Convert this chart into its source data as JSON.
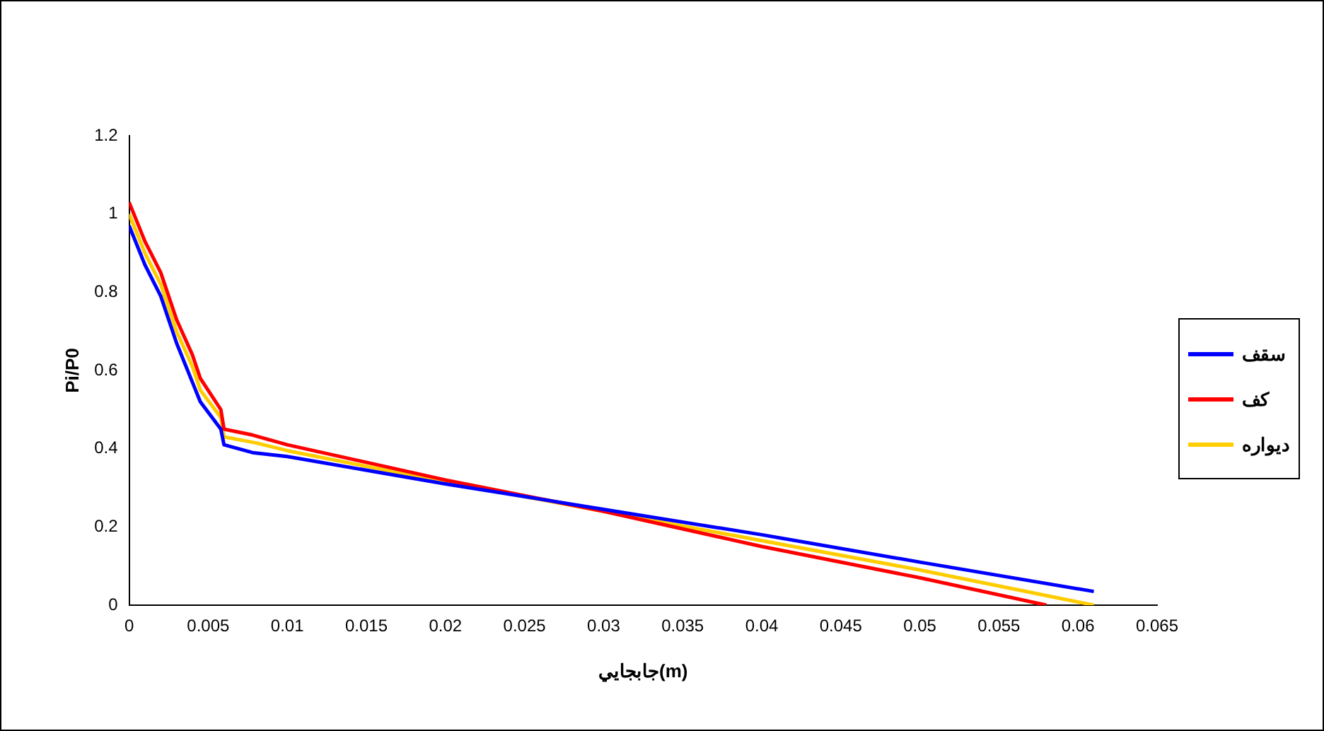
{
  "chart_data": {
    "type": "line",
    "xlabel": "جابجايي(m)",
    "ylabel": "Pi/P0",
    "xlim": [
      0,
      0.065
    ],
    "xticks": [
      0,
      0.005,
      0.01,
      0.015,
      0.02,
      0.025,
      0.03,
      0.035,
      0.04,
      0.045,
      0.05,
      0.055,
      0.06,
      0.065
    ],
    "ylim": [
      0,
      1.2
    ],
    "yticks": [
      0,
      0.2,
      0.4,
      0.6,
      0.8,
      1,
      1.2
    ],
    "grid": false,
    "legend": "right",
    "marker": "none",
    "series": [
      {
        "name": "سقف",
        "color": "#0000ff",
        "x": [
          0,
          0.001,
          0.002,
          0.003,
          0.004,
          0.0045,
          0.0058,
          0.006,
          0.0078,
          0.01,
          0.02,
          0.03,
          0.04,
          0.05,
          0.061
        ],
        "values": [
          0.97,
          0.87,
          0.79,
          0.67,
          0.57,
          0.52,
          0.45,
          0.41,
          0.39,
          0.38,
          0.31,
          0.245,
          0.18,
          0.11,
          0.035
        ]
      },
      {
        "name": "کف",
        "color": "#ff0000",
        "x": [
          0,
          0.001,
          0.002,
          0.003,
          0.004,
          0.0045,
          0.0058,
          0.006,
          0.0078,
          0.01,
          0.02,
          0.03,
          0.04,
          0.05,
          0.058
        ],
        "values": [
          1.03,
          0.93,
          0.85,
          0.73,
          0.64,
          0.58,
          0.5,
          0.45,
          0.435,
          0.41,
          0.32,
          0.24,
          0.15,
          0.07,
          0
        ]
      },
      {
        "name": "دیواره",
        "color": "#ffcc00",
        "x": [
          0,
          0.001,
          0.002,
          0.003,
          0.004,
          0.0045,
          0.0058,
          0.006,
          0.008,
          0.01,
          0.02,
          0.03,
          0.04,
          0.05,
          0.061
        ],
        "values": [
          1,
          0.9,
          0.82,
          0.7,
          0.61,
          0.55,
          0.48,
          0.43,
          0.415,
          0.395,
          0.315,
          0.24,
          0.165,
          0.09,
          0
        ]
      }
    ]
  }
}
